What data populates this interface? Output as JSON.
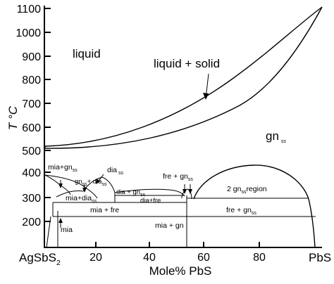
{
  "axes": {
    "y_label": "T °C",
    "x_label": "Mole% PbS",
    "y_ticks": [
      "1100",
      "1000",
      "900",
      "800",
      "700",
      "600",
      "500",
      "400",
      "300",
      "200"
    ],
    "x_ticks": [
      "20",
      "40",
      "60",
      "80"
    ],
    "left_end": "AgSbS",
    "left_end_sub": "2",
    "right_end": "PbS"
  },
  "regions": {
    "liquid": "liquid",
    "liquid_solid": "liquid + solid",
    "gn_ss": "gn",
    "gn_ss_sub": "ss",
    "mia_gn_ss": "mia+gn",
    "mia_gn_ss_sub": "ss",
    "gn_dia": "gn",
    "gn_dia_sub1": "ss",
    "gn_dia_mid": "+ dia",
    "gn_dia_sub2": "ss",
    "dia_ss": "dia",
    "dia_ss_sub": "ss",
    "fre_gn": "fre + gn",
    "fre_gn_sub": "ss",
    "mia_dia": "mia+dia",
    "mia_dia_sub": "ss",
    "dia_gn": "dia + gn",
    "dia_gn_sub": "ss",
    "dia_fre": "dia+fre",
    "two_gn": "2 gn",
    "two_gn_sub": "ss",
    "two_gn_tail": "region",
    "mia_fre": "mia + fre",
    "fre_gn_low": "fre + gn",
    "fre_gn_low_sub": "ss",
    "mia": "mia",
    "mia_gn": "mia + gn"
  }
}
